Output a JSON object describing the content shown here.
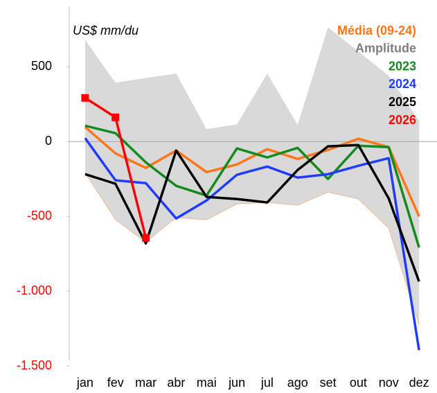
{
  "chart_data": {
    "type": "line",
    "title": "US$ mm/du",
    "categories": [
      "jan",
      "fev",
      "mar",
      "abr",
      "mai",
      "jun",
      "jul",
      "ago",
      "set",
      "out",
      "nov",
      "dez"
    ],
    "range": {
      "name": "Amplitude",
      "color": "#d9d9d9",
      "label_color": "#808080",
      "edge_color": "#f4b183",
      "max": [
        680,
        393,
        425,
        454,
        83,
        116,
        454,
        111,
        764,
        602,
        440,
        139
      ],
      "min": [
        -208,
        -523,
        -671,
        -509,
        -523,
        -417,
        -407,
        -426,
        -338,
        -384,
        -579,
        -1227
      ]
    },
    "series": [
      {
        "name": "Média (09-24)",
        "color": "#ff7518",
        "values": [
          97,
          -79,
          -176,
          -60,
          -204,
          -153,
          -51,
          -116,
          -56,
          19,
          -37,
          -500
        ]
      },
      {
        "name": "2023",
        "color": "#138a1e",
        "values": [
          106,
          56,
          -139,
          -296,
          -361,
          -46,
          -106,
          -42,
          -250,
          -28,
          -37,
          -708
        ]
      },
      {
        "name": "2024",
        "color": "#1f3bff",
        "values": [
          23,
          -259,
          -278,
          -514,
          -394,
          -222,
          -167,
          -241,
          -218,
          -162,
          -111,
          -1394
        ]
      },
      {
        "name": "2025",
        "color": "#000000",
        "values": [
          -218,
          -282,
          -681,
          -60,
          -370,
          -384,
          -407,
          -190,
          -32,
          -23,
          -380,
          -935
        ]
      },
      {
        "name": "2026",
        "color": "#ff0000",
        "markers": true,
        "values": [
          292,
          162,
          -644,
          null,
          null,
          null,
          null,
          null,
          null,
          null,
          null,
          null
        ]
      }
    ],
    "ylim": [
      -1500,
      900
    ],
    "yticks": [
      {
        "value": -1500,
        "label": "-1.500"
      },
      {
        "value": -1000,
        "label": "-1.000"
      },
      -500,
      0,
      500
    ],
    "negative_tick_color": "#ff0000",
    "zero_line": true
  }
}
